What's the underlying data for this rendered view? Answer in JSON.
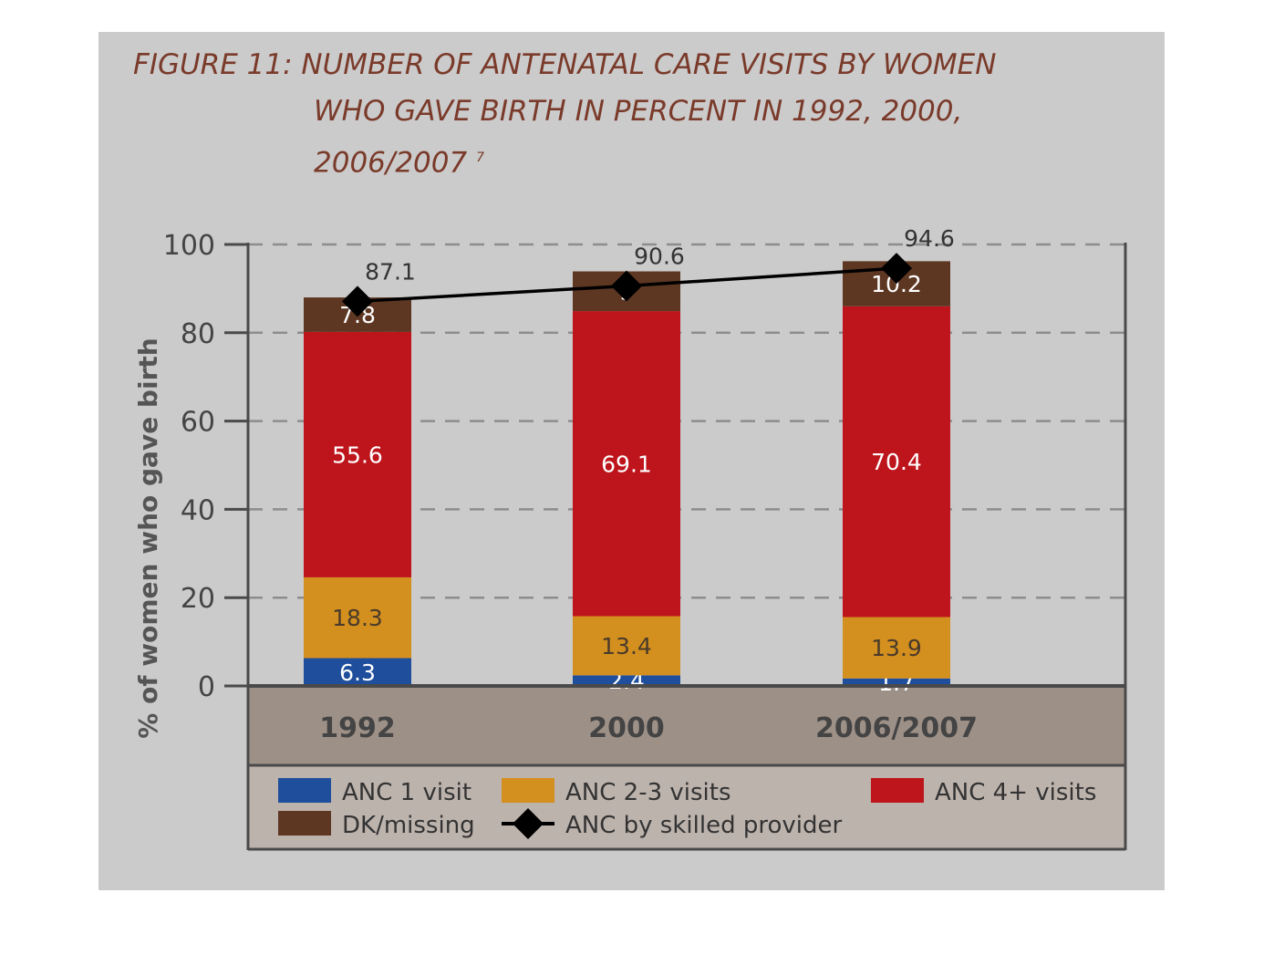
{
  "title": {
    "line1": "FIGURE 11: NUMBER OF ANTENATAL CARE VISITS  BY WOMEN",
    "line2": "WHO GAVE BIRTH IN PERCENT IN 1992, 2000,",
    "line3": "2006/2007",
    "footnote": "7"
  },
  "chart_data": {
    "type": "bar",
    "stacked": true,
    "categories": [
      "1992",
      "2000",
      "2006/2007"
    ],
    "ylabel": "% of women who gave birth",
    "xlabel": "",
    "ylim": [
      0,
      100
    ],
    "yticks": [
      0,
      20,
      40,
      60,
      80,
      100
    ],
    "grid": "horizontal dashed",
    "series": [
      {
        "name": "ANC 1 visit",
        "color": "#1f4f9c",
        "values": [
          6.3,
          2.4,
          1.7
        ]
      },
      {
        "name": "ANC 2-3 visits",
        "color": "#d4901e",
        "values": [
          18.3,
          13.4,
          13.9
        ]
      },
      {
        "name": "ANC 4+ visits",
        "color": "#be141c",
        "values": [
          55.6,
          69.1,
          70.4
        ]
      },
      {
        "name": "DK/missing",
        "color": "#5e3723",
        "values": [
          7.8,
          9,
          10.2
        ]
      }
    ],
    "line_series": {
      "name": "ANC by skilled provider",
      "color": "#000000",
      "values": [
        87.1,
        90.6,
        94.6
      ]
    },
    "legend": {
      "placement": "bottom",
      "items": [
        "ANC 1 visit",
        "ANC 2-3 visits",
        "ANC 4+ visits",
        "DK/missing",
        "ANC by skilled provider"
      ]
    }
  }
}
